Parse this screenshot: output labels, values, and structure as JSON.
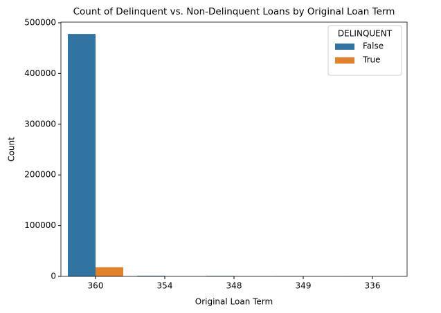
{
  "chart_data": {
    "type": "bar",
    "title": "Count of Delinquent vs. Non-Delinquent Loans by Original Loan Term",
    "x_label": "Original Loan Term",
    "y_label": "Count",
    "categories": [
      "360",
      "354",
      "348",
      "349",
      "336"
    ],
    "series": [
      {
        "name": "False",
        "color": "#3274a1",
        "values": [
          478000,
          1200,
          900,
          300,
          200
        ]
      },
      {
        "name": "True",
        "color": "#e1812c",
        "values": [
          18000,
          50,
          30,
          10,
          10
        ]
      }
    ],
    "legend_title": "DELINQUENT",
    "legend_position": "upper right",
    "ylim": [
      0,
      500000
    ],
    "yticks": [
      0,
      100000,
      200000,
      300000,
      400000,
      500000
    ],
    "grid": false
  }
}
